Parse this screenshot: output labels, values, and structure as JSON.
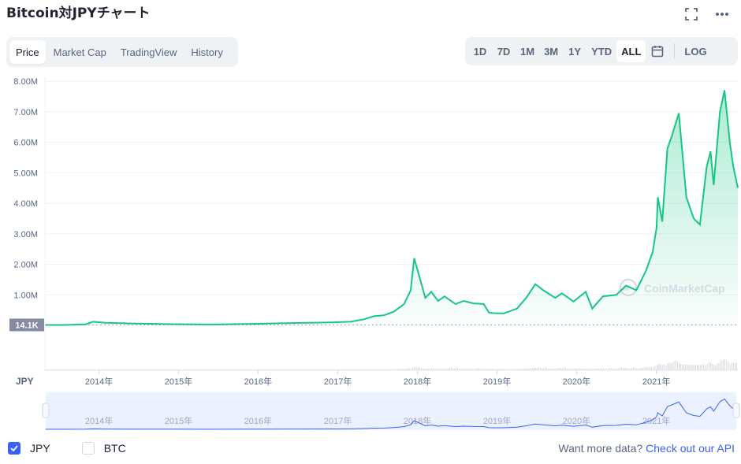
{
  "header": {
    "title": "Bitcoin対JPYチャート",
    "fullscreen_icon": "fullscreen-icon",
    "more_icon": "more-horizontal-icon"
  },
  "tabs": [
    {
      "label": "Price",
      "active": true
    },
    {
      "label": "Market Cap",
      "active": false
    },
    {
      "label": "TradingView",
      "active": false
    },
    {
      "label": "History",
      "active": false
    }
  ],
  "ranges": [
    {
      "label": "1D",
      "active": false
    },
    {
      "label": "7D",
      "active": false
    },
    {
      "label": "1M",
      "active": false
    },
    {
      "label": "3M",
      "active": false
    },
    {
      "label": "1Y",
      "active": false
    },
    {
      "label": "YTD",
      "active": false
    },
    {
      "label": "ALL",
      "active": true
    }
  ],
  "calendar_icon": "calendar-icon",
  "log_label": "LOG",
  "watermark": "CoinMarketCap",
  "current_price_label": "14.1K",
  "colors": {
    "line": "#16c784",
    "fill": "#16c784",
    "navigator_line": "#3861fb",
    "navigator_bg": "#e8eeff",
    "accent": "#3861fb",
    "price_tag_bg": "#858ca2"
  },
  "chart_data": {
    "type": "area",
    "title": "Bitcoin対JPYチャート",
    "series": [
      {
        "name": "JPY",
        "x": [
          "2013-05-01",
          "2013-08-01",
          "2013-11-01",
          "2013-12-05",
          "2014-02-01",
          "2014-06-01",
          "2014-12-01",
          "2015-06-01",
          "2015-12-01",
          "2016-06-01",
          "2016-12-01",
          "2017-03-01",
          "2017-05-01",
          "2017-06-15",
          "2017-08-01",
          "2017-09-15",
          "2017-11-01",
          "2017-12-01",
          "2017-12-17",
          "2018-01-10",
          "2018-02-06",
          "2018-03-05",
          "2018-04-06",
          "2018-05-05",
          "2018-06-25",
          "2018-08-01",
          "2018-09-15",
          "2018-11-01",
          "2018-11-25",
          "2018-12-15",
          "2019-02-01",
          "2019-04-03",
          "2019-05-15",
          "2019-06-26",
          "2019-08-01",
          "2019-09-25",
          "2019-10-26",
          "2019-12-18",
          "2020-02-12",
          "2020-03-13",
          "2020-05-01",
          "2020-07-01",
          "2020-08-15",
          "2020-10-01",
          "2020-11-15",
          "2020-12-15",
          "2021-01-02",
          "2021-01-08",
          "2021-01-28",
          "2021-02-21",
          "2021-03-13",
          "2021-04-14",
          "2021-05-19",
          "2021-06-22",
          "2021-07-20",
          "2021-08-20",
          "2021-09-07",
          "2021-09-21",
          "2021-10-20",
          "2021-11-10",
          "2021-12-04",
          "2021-12-20",
          "2022-01-10"
        ],
        "values": [
          14100,
          12000,
          35000,
          120000,
          85000,
          62000,
          38000,
          28000,
          50000,
          75000,
          95000,
          120000,
          200000,
          300000,
          330000,
          450000,
          700000,
          1150000,
          2200000,
          1600000,
          900000,
          1100000,
          800000,
          950000,
          700000,
          800000,
          720000,
          700000,
          420000,
          400000,
          390000,
          550000,
          900000,
          1350000,
          1150000,
          900000,
          1050000,
          780000,
          1100000,
          550000,
          950000,
          1000000,
          1300000,
          1150000,
          1800000,
          2400000,
          3200000,
          4200000,
          3400000,
          5800000,
          6200000,
          6950000,
          4200000,
          3500000,
          3300000,
          5200000,
          5700000,
          4600000,
          7000000,
          7700000,
          6000000,
          5200000,
          4500000
        ]
      }
    ],
    "ylabel": "JPY",
    "ylim": [
      0,
      8000000
    ],
    "y_ticks": [
      "8.00M",
      "7.00M",
      "6.00M",
      "5.00M",
      "4.00M",
      "3.00M",
      "2.00M",
      "1.00M"
    ],
    "y_tick_values": [
      8000000,
      7000000,
      6000000,
      5000000,
      4000000,
      3000000,
      2000000,
      1000000
    ],
    "x_ticks": [
      "2014年",
      "2015年",
      "2016年",
      "2017年",
      "2018年",
      "2019年",
      "2020年",
      "2021年"
    ],
    "x_tick_dates": [
      "2014-01-01",
      "2015-01-01",
      "2016-01-01",
      "2017-01-01",
      "2018-01-01",
      "2019-01-01",
      "2020-01-01",
      "2021-01-01"
    ],
    "xlim": [
      "2013-04-28",
      "2022-01-10"
    ],
    "grid": true,
    "log_scale": false,
    "legend": "bottom-left"
  },
  "legend": [
    {
      "label": "JPY",
      "checked": true
    },
    {
      "label": "BTC",
      "checked": false
    }
  ],
  "footer": {
    "prefix": "Want more data?",
    "link": "Check out our API"
  }
}
